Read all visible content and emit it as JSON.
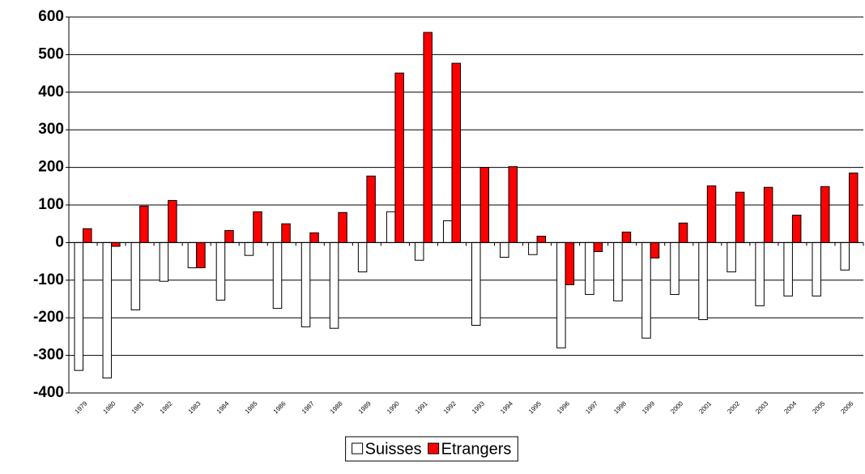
{
  "chart_data": {
    "type": "bar",
    "categories": [
      "1979",
      "1980",
      "1981",
      "1982",
      "1983",
      "1984",
      "1985",
      "1986",
      "1987",
      "1988",
      "1989",
      "1990",
      "1991",
      "1992",
      "1993",
      "1994",
      "1995",
      "1996",
      "1997",
      "1998",
      "1999",
      "2000",
      "2001",
      "2002",
      "2003",
      "2004",
      "2005",
      "2006"
    ],
    "series": [
      {
        "name": "Suisses",
        "color": "#ffffff",
        "values": [
          -340,
          -360,
          -179,
          -103,
          -67,
          -153,
          -34,
          -175,
          -224,
          -228,
          -78,
          82,
          -47,
          58,
          -220,
          -39,
          -32,
          -280,
          -138,
          -155,
          -254,
          -138,
          -205,
          -78,
          -168,
          -142,
          -142,
          -73
        ]
      },
      {
        "name": "Etrangers",
        "color": "#ff0000",
        "values": [
          37,
          -10,
          97,
          112,
          -67,
          32,
          82,
          50,
          26,
          80,
          177,
          451,
          559,
          477,
          200,
          202,
          17,
          -112,
          -24,
          28,
          -41,
          52,
          151,
          134,
          147,
          73,
          149,
          185
        ]
      }
    ],
    "ylim": [
      -400,
      600
    ],
    "yticks": [
      -400,
      -300,
      -200,
      -100,
      0,
      100,
      200,
      300,
      400,
      500,
      600
    ],
    "grid": true,
    "legend": "bottom"
  }
}
